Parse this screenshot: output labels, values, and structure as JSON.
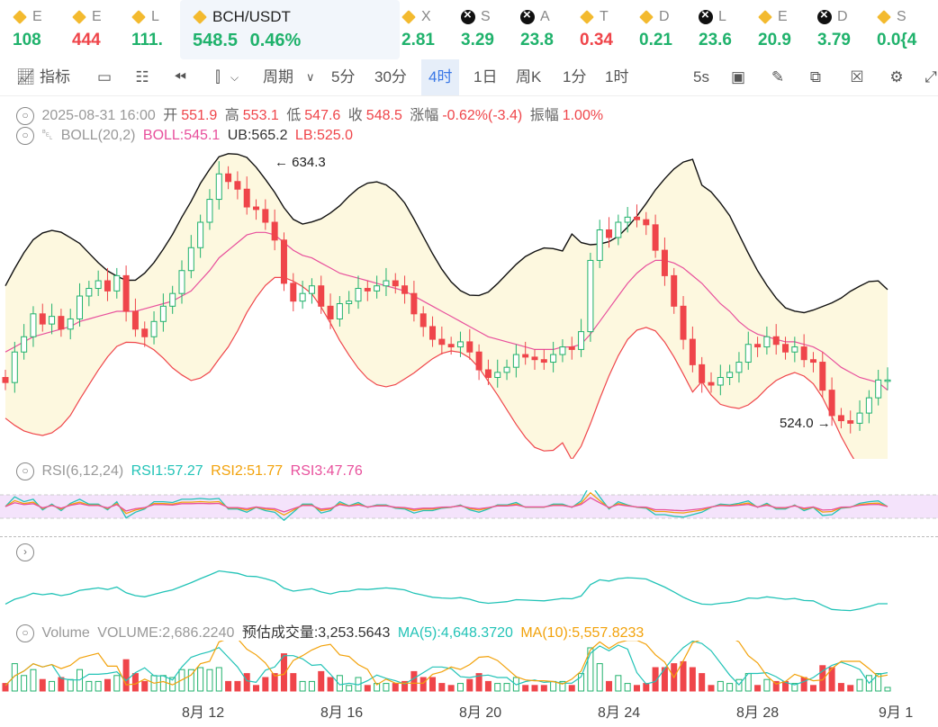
{
  "tickers": [
    {
      "sym": "E",
      "val": "108",
      "icon": "bnb-icon",
      "color": "green"
    },
    {
      "sym": "E",
      "val": "444",
      "icon": "bnb-icon",
      "color": "red"
    },
    {
      "sym": "L",
      "val": "111.",
      "icon": "bnb-icon",
      "color": "green"
    },
    {
      "sym": "BCH/USDT",
      "val": "548.5",
      "pct": "0.46%",
      "icon": "bnb-icon",
      "color": "green",
      "active": true
    },
    {
      "sym": "X",
      "val": "2.81",
      "icon": "bnb-icon",
      "color": "green"
    },
    {
      "sym": "S",
      "val": "3.29",
      "icon": "x-icon",
      "color": "green"
    },
    {
      "sym": "A",
      "val": "23.8",
      "icon": "x-icon",
      "color": "green"
    },
    {
      "sym": "T",
      "val": "0.34",
      "icon": "bnb-icon",
      "color": "red"
    },
    {
      "sym": "D",
      "val": "0.21",
      "icon": "bnb-icon",
      "color": "green"
    },
    {
      "sym": "L",
      "val": "23.6",
      "icon": "x-icon",
      "color": "green"
    },
    {
      "sym": "E",
      "val": "20.9",
      "icon": "bnb-icon",
      "color": "green"
    },
    {
      "sym": "D",
      "val": "3.79",
      "icon": "x-icon",
      "color": "green"
    },
    {
      "sym": "S",
      "val": "0.0{4",
      "icon": "bnb-icon",
      "color": "green"
    }
  ],
  "toolbar": {
    "indicators": "指标",
    "period": "周期",
    "intervals": [
      "5分",
      "30分",
      "4时",
      "1日",
      "周K",
      "1分",
      "1时"
    ],
    "active_interval": "4时",
    "refresh": "5s"
  },
  "ohlc": {
    "date": "2025-08-31 16:00",
    "open_label": "开",
    "open": "551.9",
    "high_label": "高",
    "high": "553.1",
    "low_label": "低",
    "low": "547.6",
    "close_label": "收",
    "close": "548.5",
    "change_label": "涨幅",
    "change": "-0.62%(-3.4)",
    "amp_label": "振幅",
    "amp": "1.00%"
  },
  "boll": {
    "name": "BOLL(20,2)",
    "boll": "BOLL:545.1",
    "ub": "UB:565.2",
    "lb": "LB:525.0"
  },
  "price_marks": {
    "high": "634.3",
    "low": "524.0"
  },
  "rsi": {
    "name": "RSI(6,12,24)",
    "rsi1": "RSI1:57.27",
    "rsi2": "RSI2:51.77",
    "rsi3": "RSI3:47.76"
  },
  "volume": {
    "name": "Volume",
    "vol": "VOLUME:2,686.2240",
    "est": "预估成交量:3,253.5643",
    "ma5": "MA(5):4,648.3720",
    "ma10": "MA(10):5,557.8233"
  },
  "x_labels": [
    "8月 12",
    "8月 16",
    "8月 20",
    "8月 24",
    "8月 28",
    "9月 1"
  ],
  "colors": {
    "up": "#20b26c",
    "down": "#ef454a",
    "boll_mid": "#e8509c",
    "band_fill": "#fdf8df",
    "rsi_band": "#f4e3fb"
  },
  "chart_data": {
    "type": "line",
    "title": "",
    "price_ylim": [
      518,
      640
    ],
    "close": [
      548,
      560,
      566,
      575,
      571,
      574,
      569,
      573,
      582,
      585,
      588,
      584,
      590,
      576,
      569,
      566,
      572,
      578,
      583,
      592,
      601,
      611,
      620,
      630,
      627,
      624,
      617,
      616,
      611,
      604,
      587,
      580,
      583,
      586,
      578,
      573,
      579,
      580,
      585,
      584,
      586,
      588,
      586,
      583,
      575,
      570,
      565,
      563,
      562,
      564,
      560,
      553,
      550,
      552,
      554,
      559,
      558,
      557,
      556,
      559,
      562,
      561,
      568,
      596,
      608,
      605,
      611,
      613,
      612,
      610,
      600,
      590,
      578,
      565,
      555,
      548,
      547,
      550,
      552,
      556,
      563,
      562,
      566,
      563,
      560,
      562,
      557,
      556,
      545,
      535,
      533,
      532,
      536,
      542,
      549,
      549
    ],
    "boll_mid": [
      560,
      562,
      564,
      566,
      567,
      568,
      569,
      570,
      572,
      573,
      574,
      575,
      576,
      576,
      576,
      577,
      578,
      579,
      580,
      582,
      584,
      588,
      592,
      597,
      600,
      603,
      606,
      607,
      607,
      606,
      603,
      600,
      598,
      597,
      595,
      593,
      591,
      590,
      589,
      588,
      587,
      586,
      585,
      584,
      582,
      580,
      578,
      576,
      574,
      572,
      570,
      568,
      566,
      565,
      564,
      563,
      562,
      561,
      561,
      561,
      562,
      562,
      563,
      567,
      572,
      577,
      582,
      587,
      591,
      594,
      596,
      596,
      595,
      593,
      590,
      587,
      583,
      579,
      576,
      572,
      569,
      567,
      566,
      565,
      564,
      564,
      563,
      562,
      560,
      557,
      554,
      552,
      550,
      549,
      548,
      545
    ]
  }
}
